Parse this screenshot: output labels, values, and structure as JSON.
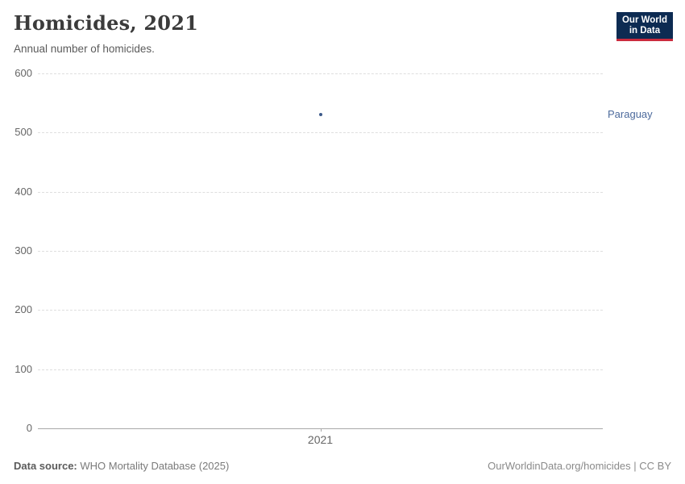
{
  "header": {
    "title": "Homicides, 2021",
    "subtitle": "Annual number of homicides.",
    "logo": {
      "line1": "Our World",
      "line2": "in Data",
      "bg_color": "#0d2b52",
      "accent_color": "#cb2b3e"
    }
  },
  "chart_data": {
    "type": "scatter",
    "title": "Homicides, 2021",
    "subtitle": "Annual number of homicides.",
    "x": [
      2021
    ],
    "categories": [
      "2021"
    ],
    "series": [
      {
        "name": "Paraguay",
        "values": [
          531
        ]
      }
    ],
    "xlabel": "",
    "ylabel": "",
    "ylim": [
      0,
      600
    ],
    "yticks": [
      0,
      100,
      200,
      300,
      400,
      500,
      600
    ],
    "grid": "horizontal-dashed",
    "legend": "entity label right of point",
    "point_color": "#3d5a8a",
    "entity_label_color": "#4c6a9c"
  },
  "footer": {
    "source_label": "Data source:",
    "source_value": " WHO Mortality Database (2025)",
    "credit": "OurWorldinData.org/homicides | CC BY"
  }
}
